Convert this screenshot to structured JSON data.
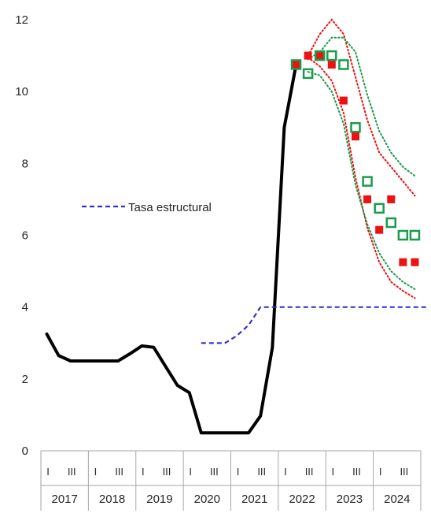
{
  "chart_data": {
    "type": "line",
    "title": "",
    "xlabel": "",
    "ylabel": "",
    "ylim": [
      0,
      12
    ],
    "yticks": [
      "0",
      "2",
      "4",
      "6",
      "8",
      "10",
      "12"
    ],
    "grid": false,
    "legend": {
      "position": "middle-left",
      "label": "Tasa estructural"
    },
    "quarter_ticks": [
      "I",
      "III"
    ],
    "years": [
      "2017",
      "2018",
      "2019",
      "2020",
      "2021",
      "2022",
      "2023",
      "2024"
    ],
    "colors": {
      "policy_rate": "#000000",
      "structural": "#3333cc",
      "red_series": "#ee1111",
      "green_series": "#1a9c4a"
    },
    "series": [
      {
        "key": "policy_rate",
        "style": "line",
        "points": [
          [
            2017.0,
            3.25
          ],
          [
            2017.25,
            2.65
          ],
          [
            2017.5,
            2.5
          ],
          [
            2017.75,
            2.5
          ],
          [
            2018.0,
            2.5
          ],
          [
            2018.25,
            2.5
          ],
          [
            2018.5,
            2.5
          ],
          [
            2018.75,
            2.7
          ],
          [
            2019.0,
            2.92
          ],
          [
            2019.25,
            2.88
          ],
          [
            2019.5,
            2.35
          ],
          [
            2019.75,
            1.82
          ],
          [
            2020.0,
            1.62
          ],
          [
            2020.25,
            0.5
          ],
          [
            2020.5,
            0.5
          ],
          [
            2020.75,
            0.5
          ],
          [
            2021.0,
            0.5
          ],
          [
            2021.25,
            0.5
          ],
          [
            2021.5,
            0.97
          ],
          [
            2021.75,
            2.87
          ],
          [
            2022.0,
            9.0
          ],
          [
            2022.25,
            10.75
          ]
        ]
      },
      {
        "key": "structural",
        "name": "Tasa estructural",
        "style": "dashed",
        "points": [
          [
            2020.25,
            3.0
          ],
          [
            2020.5,
            3.0
          ],
          [
            2020.75,
            3.0
          ],
          [
            2021.0,
            3.2
          ],
          [
            2021.25,
            3.5
          ],
          [
            2021.5,
            4.0
          ],
          [
            2021.75,
            4.0
          ],
          [
            2022.0,
            4.0
          ],
          [
            2022.5,
            4.0
          ],
          [
            2023.0,
            4.0
          ],
          [
            2023.5,
            4.0
          ],
          [
            2024.0,
            4.0
          ],
          [
            2024.5,
            4.0
          ],
          [
            2025.0,
            4.0
          ]
        ]
      },
      {
        "key": "red_series",
        "style": "filled-square",
        "points": [
          [
            2022.25,
            10.75
          ],
          [
            2022.5,
            11.0
          ],
          [
            2022.75,
            11.0
          ],
          [
            2023.0,
            10.75
          ],
          [
            2023.25,
            9.75
          ],
          [
            2023.5,
            8.75
          ],
          [
            2023.75,
            7.0
          ],
          [
            2024.0,
            6.15
          ],
          [
            2024.25,
            7.0
          ],
          [
            2024.5,
            5.25
          ],
          [
            2024.75,
            5.25
          ]
        ]
      },
      {
        "key": "green_series",
        "style": "open-square",
        "points": [
          [
            2022.25,
            10.75
          ],
          [
            2022.5,
            10.5
          ],
          [
            2022.75,
            11.0
          ],
          [
            2023.0,
            11.0
          ],
          [
            2023.25,
            10.75
          ],
          [
            2023.5,
            9.0
          ],
          [
            2023.75,
            7.5
          ],
          [
            2024.0,
            6.75
          ],
          [
            2024.25,
            6.35
          ],
          [
            2024.5,
            6.0
          ],
          [
            2024.75,
            6.0
          ]
        ]
      },
      {
        "key": "red_series",
        "style": "dotted-band-upper",
        "points": [
          [
            2022.5,
            11.0
          ],
          [
            2022.75,
            11.6
          ],
          [
            2023.0,
            12.0
          ],
          [
            2023.25,
            11.6
          ],
          [
            2023.5,
            10.4
          ],
          [
            2023.75,
            9.2
          ],
          [
            2024.0,
            8.3
          ],
          [
            2024.25,
            7.9
          ],
          [
            2024.5,
            7.5
          ],
          [
            2024.75,
            7.1
          ]
        ]
      },
      {
        "key": "red_series",
        "style": "dotted-band-lower",
        "points": [
          [
            2022.5,
            10.95
          ],
          [
            2022.75,
            10.7
          ],
          [
            2023.0,
            10.3
          ],
          [
            2023.25,
            9.4
          ],
          [
            2023.5,
            7.6
          ],
          [
            2023.75,
            6.2
          ],
          [
            2024.0,
            5.25
          ],
          [
            2024.25,
            4.7
          ],
          [
            2024.5,
            4.45
          ],
          [
            2024.75,
            4.25
          ]
        ]
      },
      {
        "key": "green_series",
        "style": "dotted-band-upper",
        "points": [
          [
            2022.5,
            10.9
          ],
          [
            2022.75,
            11.1
          ],
          [
            2023.0,
            11.5
          ],
          [
            2023.25,
            11.5
          ],
          [
            2023.5,
            11.1
          ],
          [
            2023.75,
            9.9
          ],
          [
            2024.0,
            8.9
          ],
          [
            2024.25,
            8.3
          ],
          [
            2024.5,
            7.9
          ],
          [
            2024.75,
            7.65
          ]
        ]
      },
      {
        "key": "green_series",
        "style": "dotted-band-lower",
        "points": [
          [
            2022.5,
            10.55
          ],
          [
            2022.75,
            10.45
          ],
          [
            2023.0,
            10.0
          ],
          [
            2023.25,
            9.1
          ],
          [
            2023.5,
            7.4
          ],
          [
            2023.75,
            6.3
          ],
          [
            2024.0,
            5.5
          ],
          [
            2024.25,
            5.0
          ],
          [
            2024.5,
            4.7
          ],
          [
            2024.75,
            4.5
          ]
        ]
      }
    ]
  }
}
